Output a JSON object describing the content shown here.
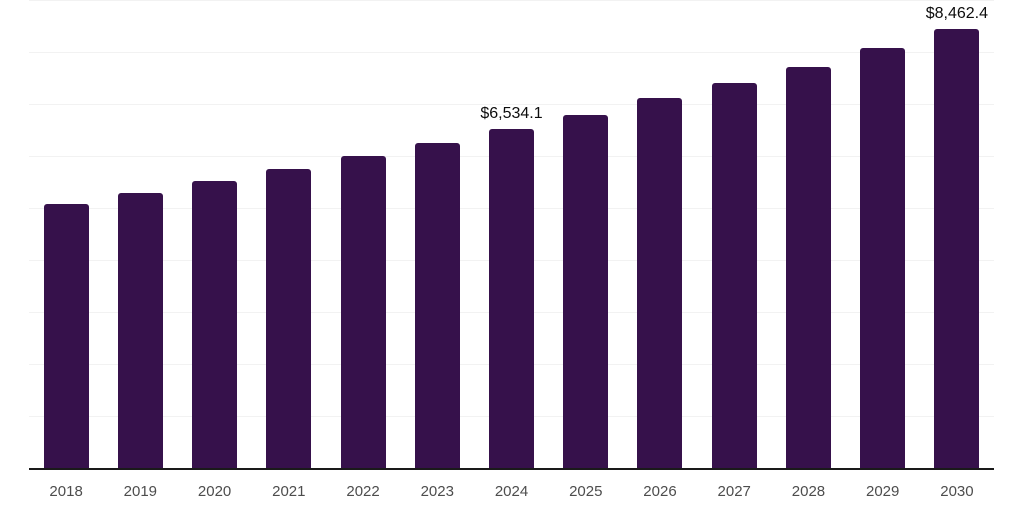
{
  "chart_data": {
    "type": "bar",
    "title": "",
    "xlabel": "",
    "ylabel": "",
    "categories": [
      "2018",
      "2019",
      "2020",
      "2021",
      "2022",
      "2023",
      "2024",
      "2025",
      "2026",
      "2027",
      "2028",
      "2029",
      "2030"
    ],
    "values": [
      5100,
      5310,
      5540,
      5760,
      6020,
      6270,
      6534.1,
      6810,
      7130,
      7420,
      7730,
      8090,
      8462.4
    ],
    "data_labels": {
      "2024": "$6,534.1",
      "2030": "$8,462.4"
    },
    "ylim": [
      0,
      9013
    ],
    "gridline_step": 1000,
    "grid": "horizontal-only",
    "legend": "none",
    "y_tick_labels_visible": false,
    "colors": {
      "bar": "#36114B",
      "axis_line": "#1a1a1a",
      "gridline": "#f2f2f2",
      "tick_label": "#4d4d4d",
      "data_label": "#0d0d0d",
      "background": "#ffffff"
    }
  }
}
